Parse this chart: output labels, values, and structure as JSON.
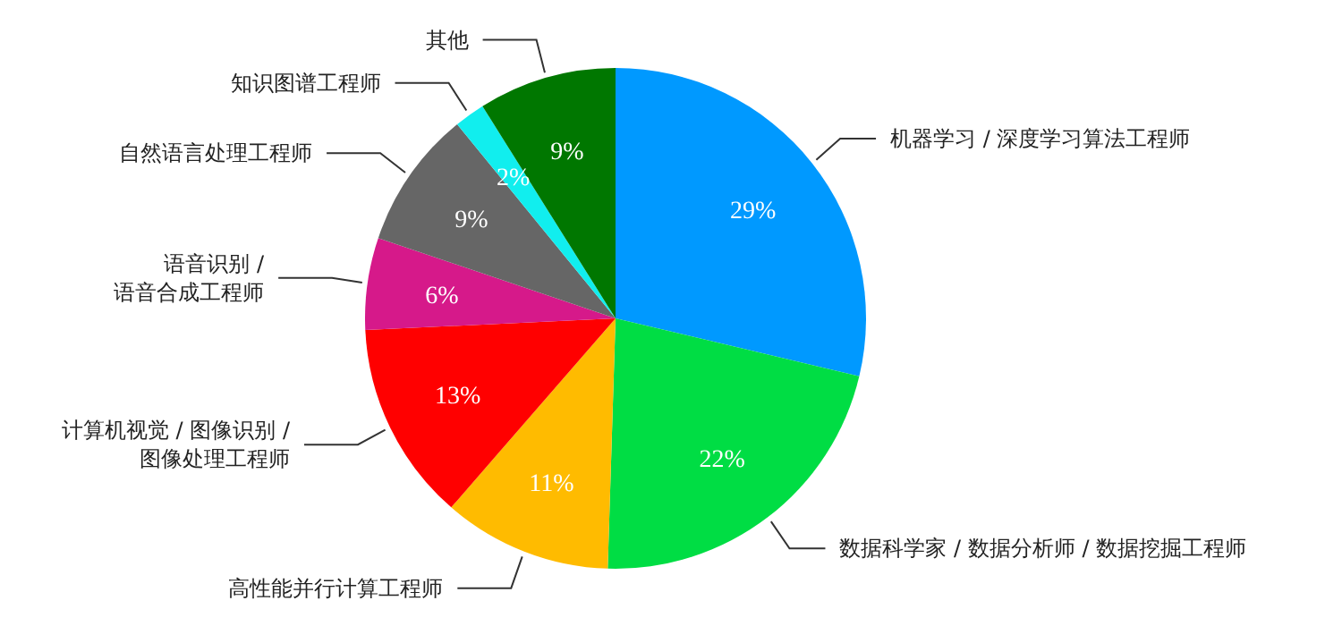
{
  "chart_data": {
    "type": "pie",
    "categories": [
      "机器学习 / 深度学习算法工程师",
      "数据科学家 / 数据分析师 / 数据挖掘工程师",
      "高性能并行计算工程师",
      "计算机视觉 / 图像识别 / 图像处理工程师",
      "语音识别 / 语音合成工程师",
      "自然语言处理工程师",
      "知识图谱工程师",
      "其他"
    ],
    "values": [
      29,
      22,
      11,
      13,
      6,
      9,
      2,
      9
    ],
    "colors": [
      "#0099ff",
      "#00dd44",
      "#ffbb00",
      "#ff0000",
      "#d6198a",
      "#666666",
      "#11eeee",
      "#007700"
    ],
    "value_labels": [
      "29%",
      "22%",
      "11%",
      "13%",
      "6%",
      "9%",
      "2%",
      "9%"
    ]
  }
}
